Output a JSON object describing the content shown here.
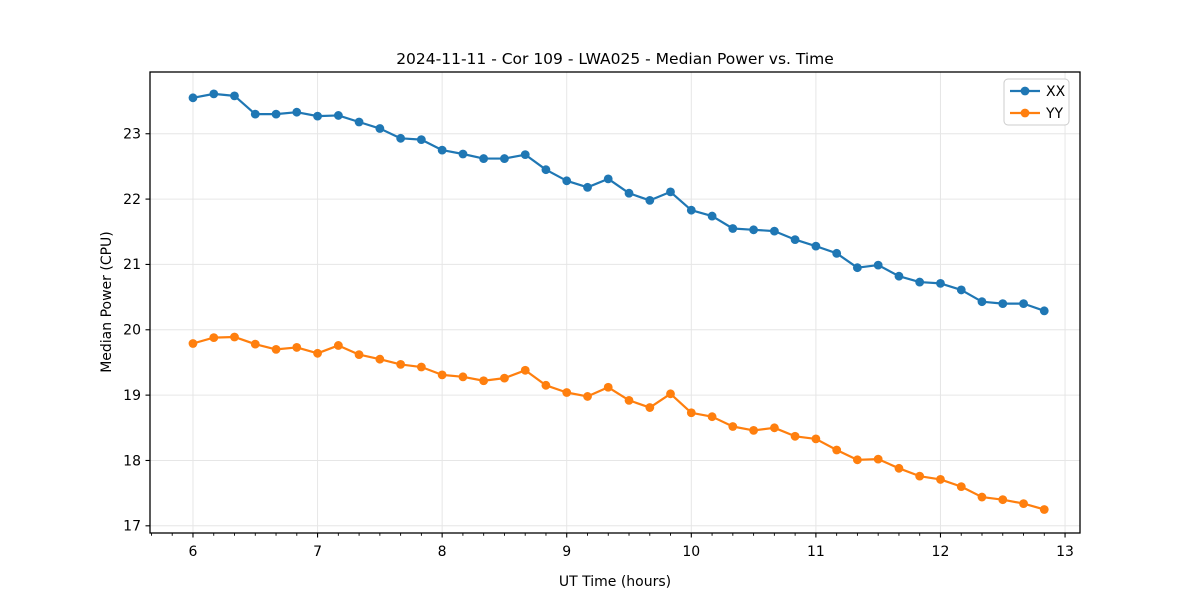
{
  "figure": {
    "title": "2024-11-11 - Cor 109 - LWA025 - Median Power vs. Time",
    "xlabel": "UT Time (hours)",
    "ylabel": "Median Power (CPU)"
  },
  "chart_data": {
    "type": "line",
    "title": "2024-11-11 - Cor 109 - LWA025 - Median Power vs. Time",
    "xlabel": "UT Time (hours)",
    "ylabel": "Median Power (CPU)",
    "xlim": [
      5.655,
      13.12
    ],
    "ylim": [
      16.89,
      23.945
    ],
    "x_ticks": [
      6,
      7,
      8,
      9,
      10,
      11,
      12,
      13
    ],
    "y_ticks": [
      17,
      18,
      19,
      20,
      21,
      22,
      23
    ],
    "x_minor_step": 0.1666667,
    "grid": true,
    "grid_color": "#e6e6e6",
    "legend_position": "upper right",
    "x": [
      6.0,
      6.167,
      6.333,
      6.5,
      6.667,
      6.833,
      7.0,
      7.167,
      7.333,
      7.5,
      7.667,
      7.833,
      8.0,
      8.167,
      8.333,
      8.5,
      8.667,
      8.833,
      9.0,
      9.167,
      9.333,
      9.5,
      9.667,
      9.833,
      10.0,
      10.167,
      10.333,
      10.5,
      10.667,
      10.833,
      11.0,
      11.167,
      11.333,
      11.5,
      11.667,
      11.833,
      12.0,
      12.167,
      12.333,
      12.5,
      12.667,
      12.833
    ],
    "series": [
      {
        "name": "XX",
        "color": "#1f77b4",
        "marker": "circle",
        "values": [
          23.55,
          23.61,
          23.58,
          23.3,
          23.3,
          23.33,
          23.27,
          23.28,
          23.18,
          23.08,
          22.93,
          22.91,
          22.75,
          22.69,
          22.62,
          22.62,
          22.68,
          22.45,
          22.28,
          22.18,
          22.31,
          22.09,
          21.98,
          22.11,
          21.83,
          21.74,
          21.55,
          21.53,
          21.51,
          21.38,
          21.28,
          21.17,
          20.95,
          20.99,
          20.82,
          20.73,
          20.71,
          20.61,
          20.43,
          20.4,
          20.4,
          20.29
        ]
      },
      {
        "name": "YY",
        "color": "#ff7f0e",
        "marker": "circle",
        "values": [
          19.79,
          19.88,
          19.89,
          19.78,
          19.7,
          19.73,
          19.64,
          19.76,
          19.62,
          19.55,
          19.47,
          19.43,
          19.31,
          19.28,
          19.22,
          19.26,
          19.38,
          19.15,
          19.04,
          18.98,
          19.12,
          18.92,
          18.81,
          19.02,
          18.73,
          18.67,
          18.52,
          18.46,
          18.5,
          18.37,
          18.33,
          18.16,
          18.01,
          18.02,
          17.88,
          17.76,
          17.71,
          17.6,
          17.44,
          17.4,
          17.34,
          17.25
        ]
      }
    ]
  },
  "colors": {
    "series_xx": "#1f77b4",
    "series_yy": "#ff7f0e",
    "grid": "#e6e6e6",
    "spine": "#000000",
    "legend_border": "#cccccc",
    "background": "#ffffff"
  }
}
